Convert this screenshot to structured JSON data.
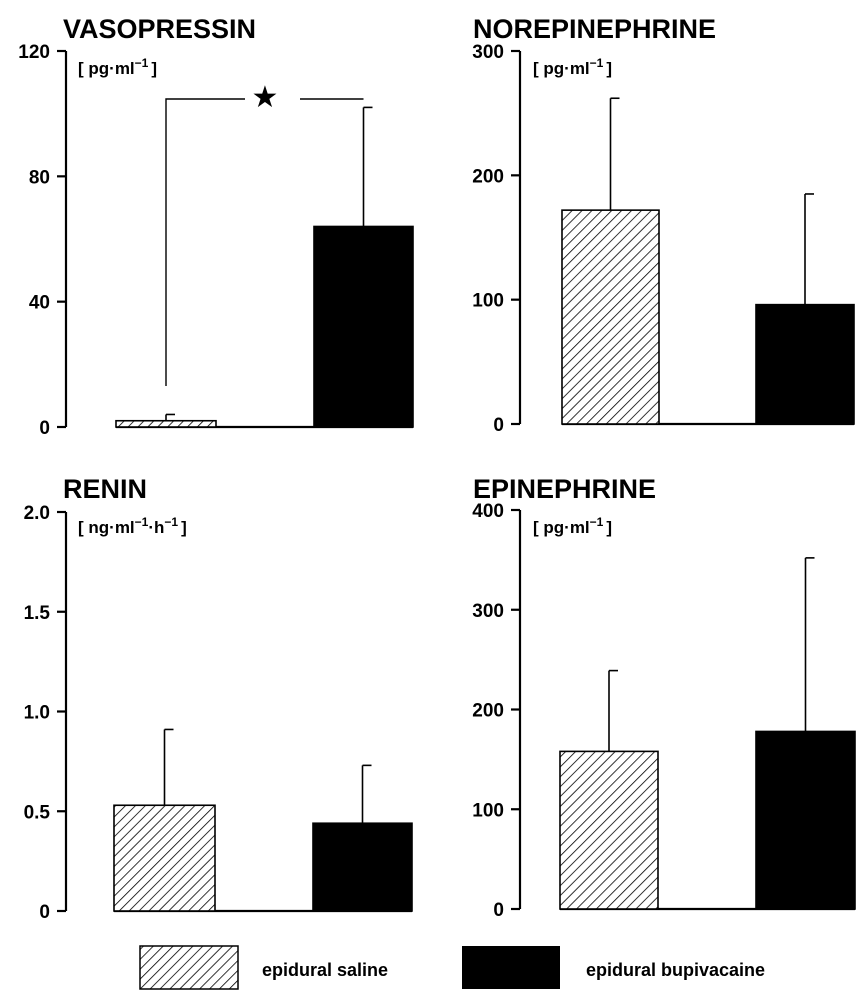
{
  "legend": [
    {
      "label": "epidural saline",
      "pattern": "hatched"
    },
    {
      "label": "epidural bupivacaine",
      "pattern": "solid"
    }
  ],
  "chart_data": [
    {
      "type": "bar",
      "title": "VASOPRESSIN",
      "unit": {
        "base": "[ pg·ml",
        "sup": "−1",
        "close": "]"
      },
      "ylim": [
        0,
        120
      ],
      "yticks": [
        "0",
        "40",
        "80",
        "120"
      ],
      "series": [
        {
          "name": "epidural saline",
          "values": [
            2
          ],
          "errors": [
            2
          ]
        },
        {
          "name": "epidural bupivacaine",
          "values": [
            64
          ],
          "errors": [
            38
          ]
        }
      ],
      "annotations": [
        {
          "text": "★",
          "meaning": "significant difference"
        }
      ]
    },
    {
      "type": "bar",
      "title": "NOREPINEPHRINE",
      "unit": {
        "base": "[ pg·ml",
        "sup": "−1",
        "close": "]"
      },
      "ylim": [
        0,
        300
      ],
      "yticks": [
        "0",
        "100",
        "200",
        "300"
      ],
      "series": [
        {
          "name": "epidural saline",
          "values": [
            172
          ],
          "errors": [
            90
          ]
        },
        {
          "name": "epidural bupivacaine",
          "values": [
            96
          ],
          "errors": [
            89
          ]
        }
      ]
    },
    {
      "type": "bar",
      "title": "RENIN",
      "unit": {
        "base": "[ ng·ml",
        "sup": "−1",
        "mid": "·h",
        "sup2": "−1",
        "close": "]"
      },
      "ylim": [
        0,
        2.0
      ],
      "yticks": [
        "0",
        "0.5",
        "1.0",
        "1.5",
        "2.0"
      ],
      "series": [
        {
          "name": "epidural saline",
          "values": [
            0.53
          ],
          "errors": [
            0.38
          ]
        },
        {
          "name": "epidural bupivacaine",
          "values": [
            0.44
          ],
          "errors": [
            0.29
          ]
        }
      ]
    },
    {
      "type": "bar",
      "title": "EPINEPHRINE",
      "unit": {
        "base": "[ pg·ml",
        "sup": "−1",
        "close": "]"
      },
      "ylim": [
        0,
        400
      ],
      "yticks": [
        "0",
        "100",
        "200",
        "300",
        "400"
      ],
      "series": [
        {
          "name": "epidural saline",
          "values": [
            158
          ],
          "errors": [
            81
          ]
        },
        {
          "name": "epidural bupivacaine",
          "values": [
            178
          ],
          "errors": [
            174
          ]
        }
      ]
    }
  ]
}
